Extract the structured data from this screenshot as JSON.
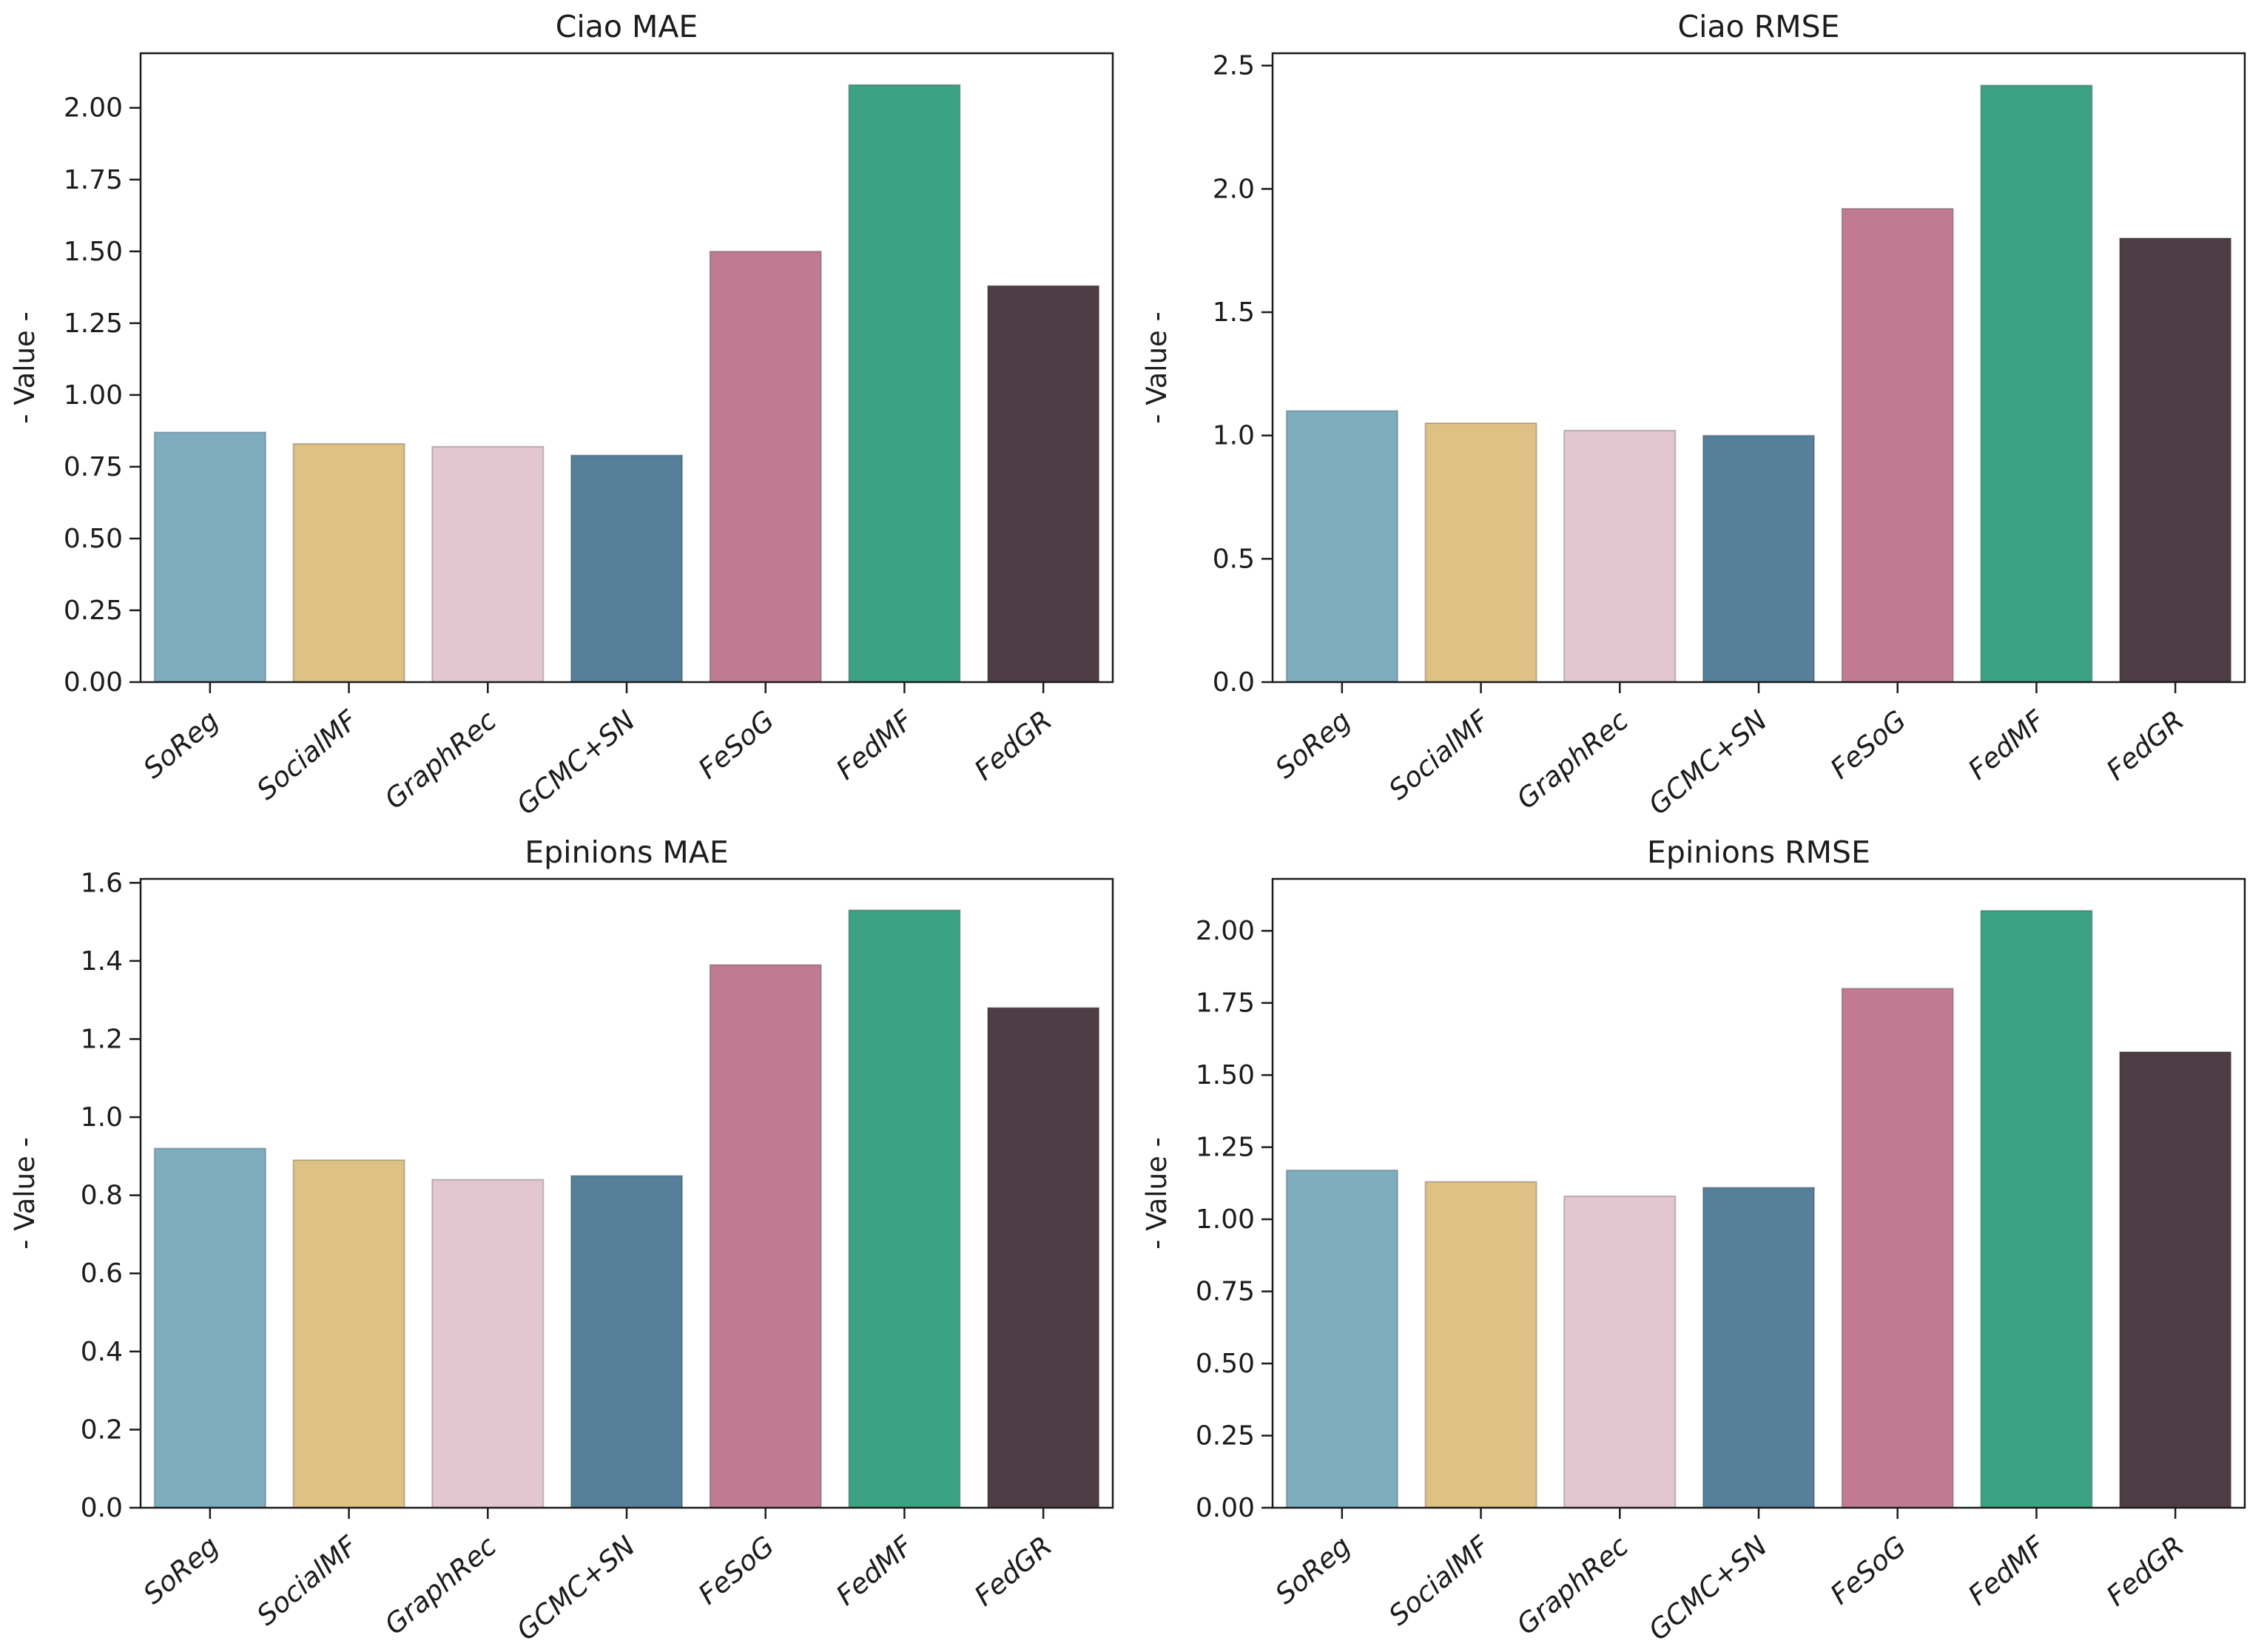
{
  "figure": {
    "background": "#ffffff",
    "text_color": "#1c1c1c",
    "spine_color": "#1c1c1c",
    "bar_edge_color": "rgba(0,0,0,0.22)"
  },
  "chart_data": [
    {
      "type": "bar",
      "title": "Ciao MAE",
      "xlabel": "",
      "ylabel": "- Value -",
      "categories": [
        "SoReg",
        "SocialMF",
        "GraphRec",
        "GCMC+SN",
        "FeSoG",
        "FedMF",
        "FedGR"
      ],
      "values": [
        0.87,
        0.83,
        0.82,
        0.79,
        1.5,
        2.08,
        1.38
      ],
      "colors": [
        "#7dadbf",
        "#dec184",
        "#e2c6d0",
        "#56809a",
        "#c07b93",
        "#3ba384",
        "#4f3d45"
      ],
      "ylim": [
        0,
        2.19
      ],
      "ytick_step": 0.25,
      "ytick_decimals": 2,
      "grid": false,
      "legend_position": "none",
      "xtick_rotation": 40,
      "xtick_style": "italic"
    },
    {
      "type": "bar",
      "title": "Ciao RMSE",
      "xlabel": "",
      "ylabel": "- Value -",
      "categories": [
        "SoReg",
        "SocialMF",
        "GraphRec",
        "GCMC+SN",
        "FeSoG",
        "FedMF",
        "FedGR"
      ],
      "values": [
        1.1,
        1.05,
        1.02,
        1.0,
        1.92,
        2.42,
        1.8
      ],
      "colors": [
        "#7dadbf",
        "#dec184",
        "#e2c6d0",
        "#56809a",
        "#c07b93",
        "#3ba384",
        "#4f3d45"
      ],
      "ylim": [
        0,
        2.55
      ],
      "ytick_step": 0.5,
      "ytick_decimals": 1,
      "grid": false,
      "legend_position": "none",
      "xtick_rotation": 40,
      "xtick_style": "italic"
    },
    {
      "type": "bar",
      "title": "Epinions MAE",
      "xlabel": "",
      "ylabel": "- Value -",
      "categories": [
        "SoReg",
        "SocialMF",
        "GraphRec",
        "GCMC+SN",
        "FeSoG",
        "FedMF",
        "FedGR"
      ],
      "values": [
        0.92,
        0.89,
        0.84,
        0.85,
        1.39,
        1.53,
        1.28
      ],
      "colors": [
        "#7dadbf",
        "#dec184",
        "#e2c6d0",
        "#56809a",
        "#c07b93",
        "#3ba384",
        "#4f3d45"
      ],
      "ylim": [
        0,
        1.61
      ],
      "ytick_step": 0.2,
      "ytick_decimals": 1,
      "grid": false,
      "legend_position": "none",
      "xtick_rotation": 40,
      "xtick_style": "italic"
    },
    {
      "type": "bar",
      "title": "Epinions RMSE",
      "xlabel": "",
      "ylabel": "- Value -",
      "categories": [
        "SoReg",
        "SocialMF",
        "GraphRec",
        "GCMC+SN",
        "FeSoG",
        "FedMF",
        "FedGR"
      ],
      "values": [
        1.17,
        1.13,
        1.08,
        1.11,
        1.8,
        2.07,
        1.58
      ],
      "colors": [
        "#7dadbf",
        "#dec184",
        "#e2c6d0",
        "#56809a",
        "#c07b93",
        "#3ba384",
        "#4f3d45"
      ],
      "ylim": [
        0,
        2.18
      ],
      "ytick_step": 0.25,
      "ytick_decimals": 2,
      "grid": false,
      "legend_position": "none",
      "xtick_rotation": 40,
      "xtick_style": "italic"
    }
  ]
}
